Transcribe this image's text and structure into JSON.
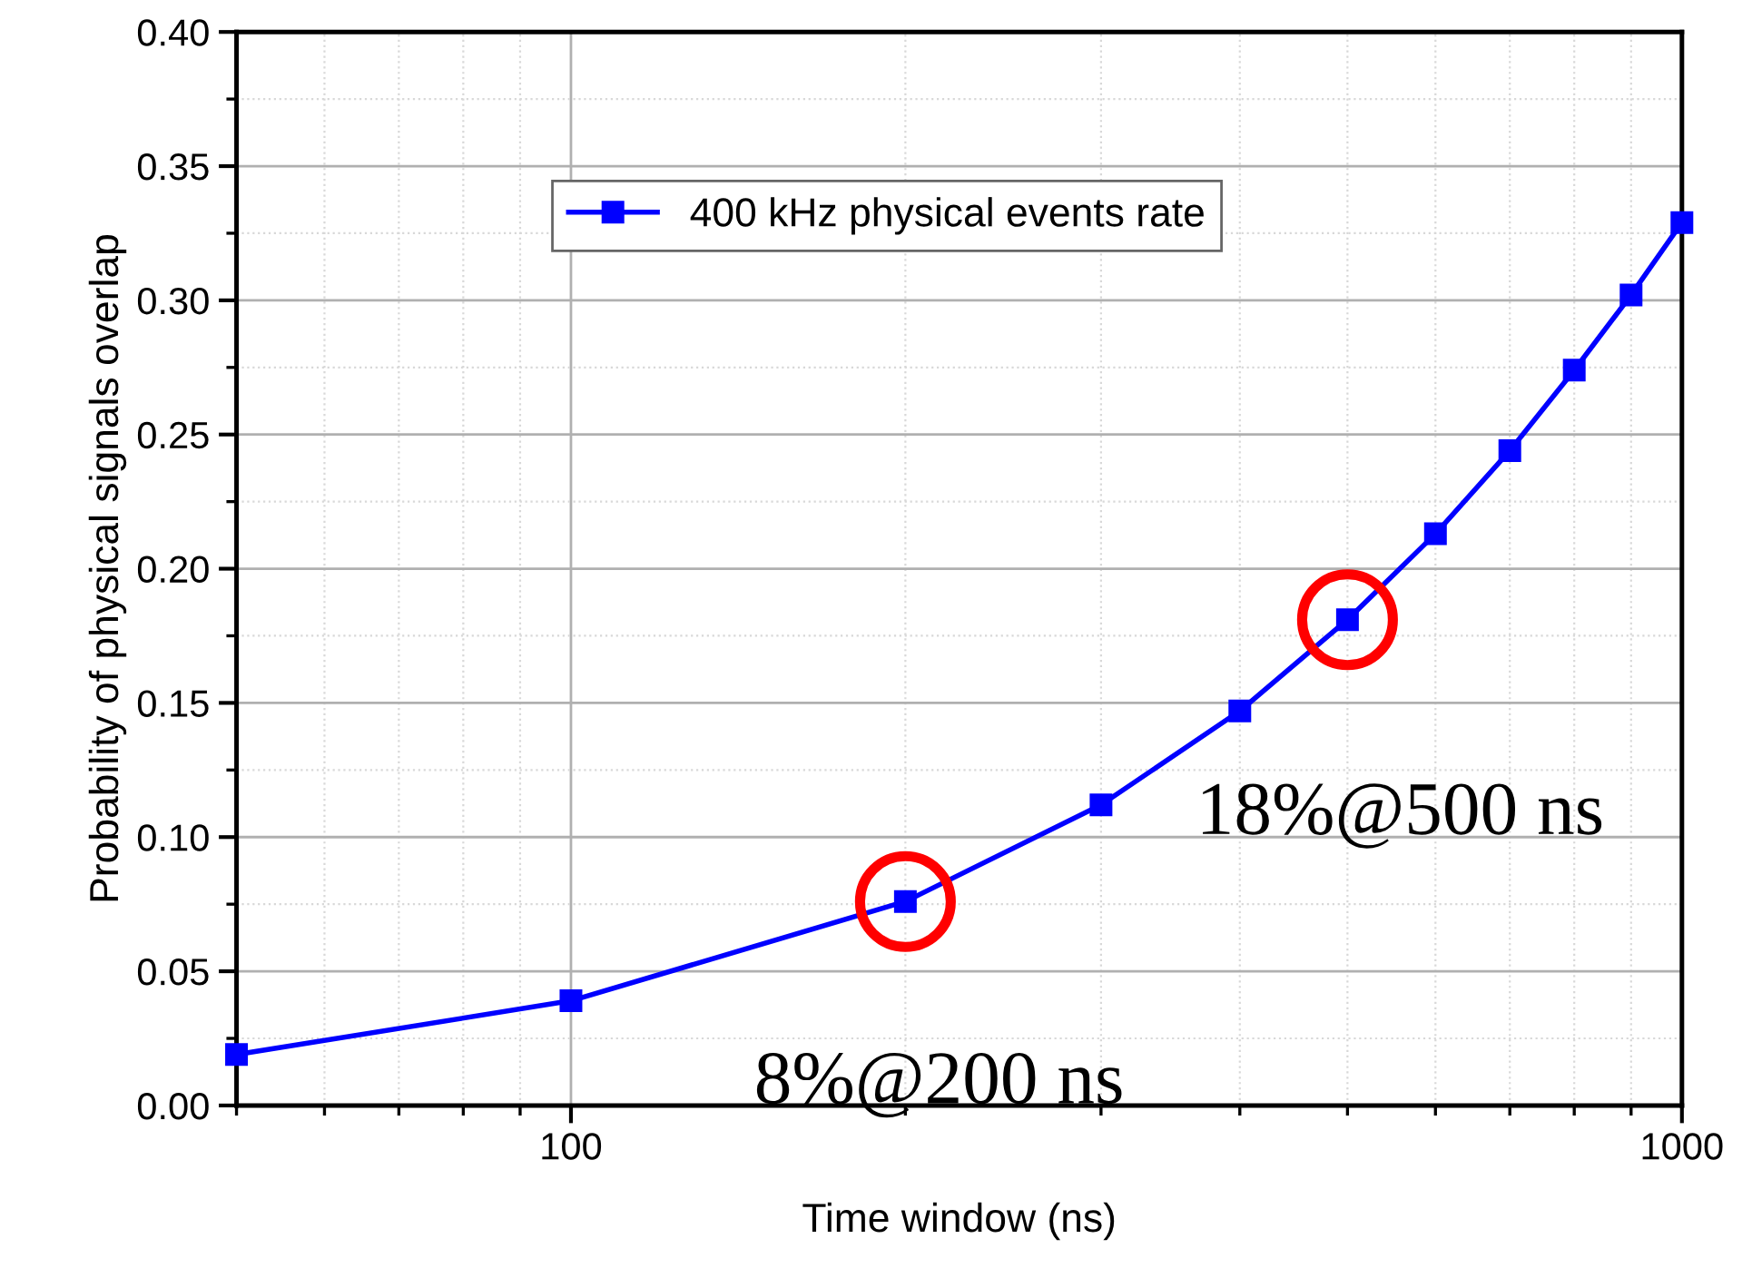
{
  "chart_data": {
    "type": "line",
    "xlabel": "Time window (ns)",
    "ylabel": "Probability of physical signals overlap",
    "log": "x",
    "xlim": [
      50,
      1000
    ],
    "xticks": [
      100,
      1000
    ],
    "ylim": [
      0,
      0.4
    ],
    "yticks": [
      {
        "value": 0,
        "label": "0.00"
      },
      {
        "value": 0.05,
        "label": "0.05"
      },
      {
        "value": 0.1,
        "label": "0.10"
      },
      {
        "value": 0.15,
        "label": "0.15"
      },
      {
        "value": 0.2,
        "label": "0.20"
      },
      {
        "value": 0.25,
        "label": "0.25"
      },
      {
        "value": 0.3,
        "label": "0.30"
      },
      {
        "value": 0.35,
        "label": "0.35"
      },
      {
        "value": 0.4,
        "label": "0.40"
      }
    ],
    "grid": true,
    "legend": "top",
    "marker": "square",
    "line_style": "solid",
    "x": [
      50,
      100,
      200,
      300,
      400,
      500,
      600,
      700,
      800,
      900,
      1000
    ],
    "series": [
      {
        "name": "400 kHz physical events rate",
        "color": "#0000ff",
        "values": [
          0.019,
          0.039,
          0.076,
          0.112,
          0.147,
          0.181,
          0.213,
          0.244,
          0.274,
          0.302,
          0.329
        ]
      }
    ],
    "annotations": [
      {
        "text": "8%@200 ns",
        "x": 200,
        "y": 0.076
      },
      {
        "text": "18%@500 ns",
        "x": 500,
        "y": 0.181
      }
    ]
  }
}
